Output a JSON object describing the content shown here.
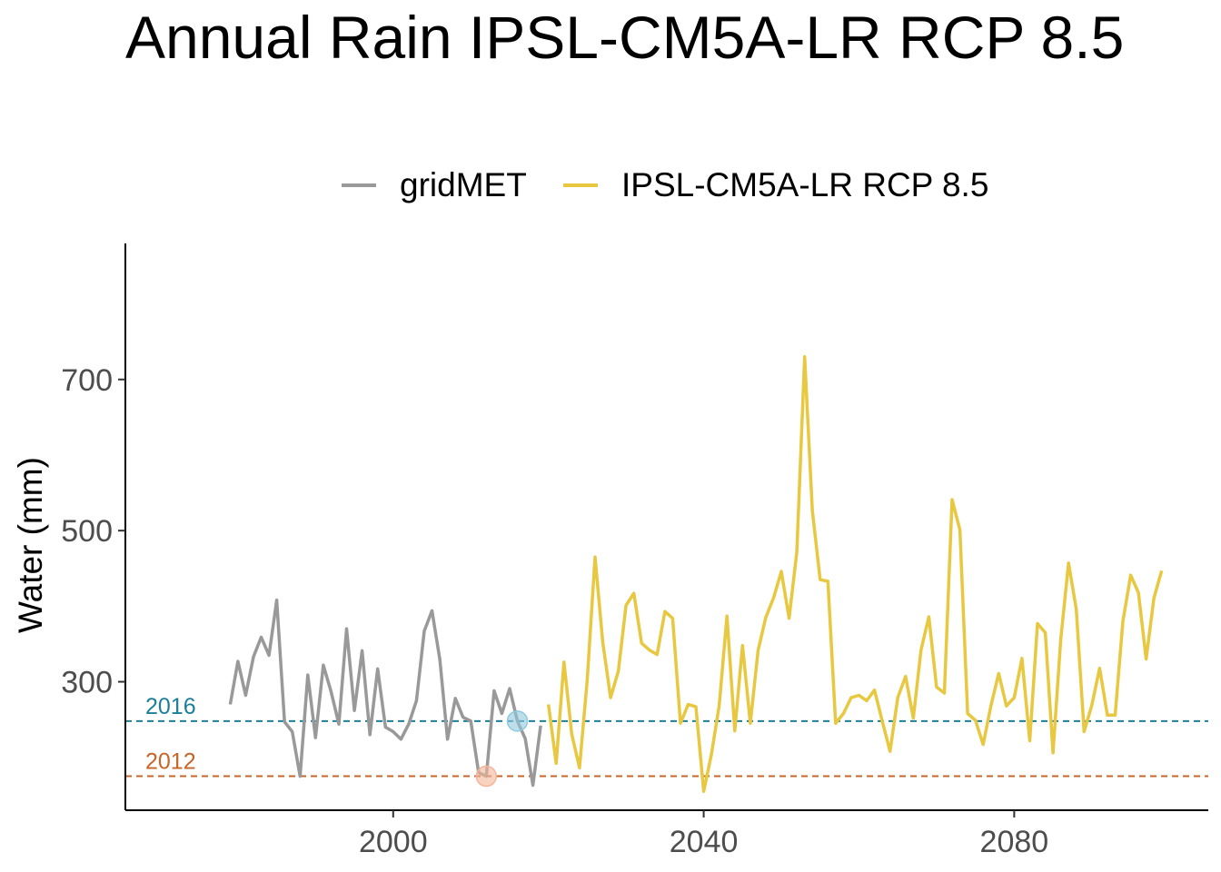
{
  "chart_data": {
    "type": "line",
    "title": "Annual Rain IPSL-CM5A-LR RCP 8.5",
    "xlabel": "",
    "ylabel": "Water (mm)",
    "xlim": [
      1965.5,
      2105
    ],
    "ylim": [
      130,
      880
    ],
    "x_ticks": [
      2000,
      2040,
      2080
    ],
    "y_ticks": [
      300,
      500,
      700
    ],
    "grid": false,
    "legend_position": "top",
    "series": [
      {
        "name": "gridMET",
        "color": "#999999",
        "x": [
          1979,
          1980,
          1981,
          1982,
          1983,
          1984,
          1985,
          1986,
          1987,
          1988,
          1989,
          1990,
          1991,
          1992,
          1993,
          1994,
          1995,
          1996,
          1997,
          1998,
          1999,
          2000,
          2001,
          2002,
          2003,
          2004,
          2005,
          2006,
          2007,
          2008,
          2009,
          2010,
          2011,
          2012,
          2013,
          2014,
          2015,
          2016,
          2017,
          2018,
          2019
        ],
        "y": [
          270,
          327,
          282,
          333,
          359,
          335,
          408,
          247,
          234,
          175,
          309,
          226,
          322,
          287,
          244,
          370,
          262,
          341,
          230,
          317,
          240,
          234,
          224,
          244,
          275,
          367,
          394,
          330,
          224,
          278,
          253,
          248,
          180,
          175,
          288,
          258,
          291,
          248,
          225,
          163,
          242
        ]
      },
      {
        "name": "IPSL-CM5A-LR RCP 8.5",
        "color": "#e8c840",
        "x": [
          2020,
          2021,
          2022,
          2023,
          2024,
          2025,
          2026,
          2027,
          2028,
          2029,
          2030,
          2031,
          2032,
          2033,
          2034,
          2035,
          2036,
          2037,
          2038,
          2039,
          2040,
          2041,
          2042,
          2043,
          2044,
          2045,
          2046,
          2047,
          2048,
          2049,
          2050,
          2051,
          2052,
          2053,
          2054,
          2055,
          2056,
          2057,
          2058,
          2059,
          2060,
          2061,
          2062,
          2063,
          2064,
          2065,
          2066,
          2067,
          2068,
          2069,
          2070,
          2071,
          2072,
          2073,
          2074,
          2075,
          2076,
          2077,
          2078,
          2079,
          2080,
          2081,
          2082,
          2083,
          2084,
          2085,
          2086,
          2087,
          2088,
          2089,
          2090,
          2091,
          2092,
          2093,
          2094,
          2095,
          2096,
          2097,
          2098,
          2099
        ],
        "y": [
          270,
          192,
          326,
          231,
          186,
          303,
          465,
          352,
          279,
          314,
          401,
          417,
          351,
          342,
          336,
          393,
          384,
          245,
          270,
          267,
          155,
          204,
          269,
          387,
          235,
          348,
          245,
          341,
          385,
          411,
          446,
          384,
          472,
          730,
          526,
          435,
          433,
          245,
          258,
          279,
          282,
          275,
          289,
          248,
          208,
          279,
          307,
          252,
          342,
          386,
          293,
          285,
          541,
          501,
          258,
          249,
          217,
          268,
          311,
          268,
          279,
          331,
          222,
          377,
          365,
          206,
          356,
          457,
          396,
          234,
          269,
          318,
          256,
          256,
          380,
          441,
          418,
          330,
          411,
          447
        ]
      }
    ],
    "reference_lines": [
      {
        "label": "2016",
        "value": 248,
        "color": "#1b7f9a"
      },
      {
        "label": "2012",
        "value": 175,
        "color": "#c86428"
      }
    ],
    "highlight_points": [
      {
        "year": 2016,
        "value": 248,
        "color": "#8fc9dd"
      },
      {
        "year": 2012,
        "value": 175,
        "color": "#f4b69a"
      }
    ]
  }
}
